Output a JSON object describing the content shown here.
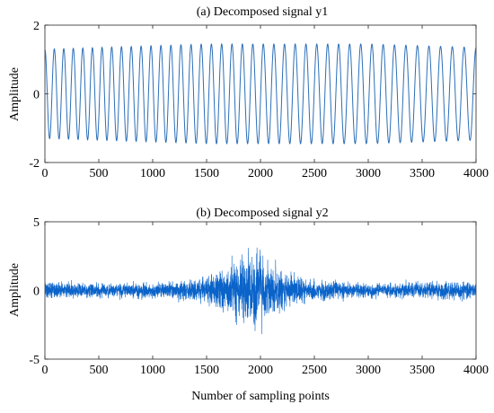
{
  "chart_data": [
    {
      "type": "line",
      "title": "(a) Decomposed signal y1",
      "xlabel": "",
      "ylabel": "Amplitude",
      "xlim": [
        0,
        4000
      ],
      "ylim": [
        -2,
        2
      ],
      "xticks": [
        0,
        500,
        1000,
        1500,
        2000,
        2500,
        3000,
        3500,
        4000
      ],
      "yticks": [
        -2,
        0,
        2
      ],
      "grid": false,
      "series": [
        {
          "color": "#2b6fb8",
          "description_cycles": 41,
          "x": [
            0,
            500,
            1000,
            1500,
            2000,
            2500,
            3000,
            3500,
            4000
          ],
          "envelope": [
            1.3,
            1.35,
            1.4,
            1.45,
            1.45,
            1.45,
            1.45,
            1.4,
            1.35
          ]
        }
      ]
    },
    {
      "type": "line",
      "title": "(b) Decomposed signal y2",
      "xlabel": "Number of sampling points",
      "ylabel": "Amplitude",
      "xlim": [
        0,
        4000
      ],
      "ylim": [
        -5,
        5
      ],
      "xticks": [
        0,
        500,
        1000,
        1500,
        2000,
        2500,
        3000,
        3500,
        4000
      ],
      "yticks": [
        -5,
        0,
        5
      ],
      "grid": false,
      "series": [
        {
          "color": "#0a63c9",
          "x": [
            0,
            250,
            500,
            750,
            1000,
            1250,
            1500,
            1650,
            1800,
            1900,
            2000,
            2100,
            2250,
            2500,
            2750,
            3000,
            3250,
            3500,
            3750,
            4000
          ],
          "envelope": [
            1.0,
            0.9,
            0.8,
            0.8,
            0.9,
            1.0,
            1.5,
            2.4,
            3.5,
            4.0,
            3.8,
            2.8,
            1.8,
            1.1,
            0.9,
            0.8,
            0.8,
            0.9,
            1.0,
            0.9
          ]
        }
      ]
    }
  ]
}
